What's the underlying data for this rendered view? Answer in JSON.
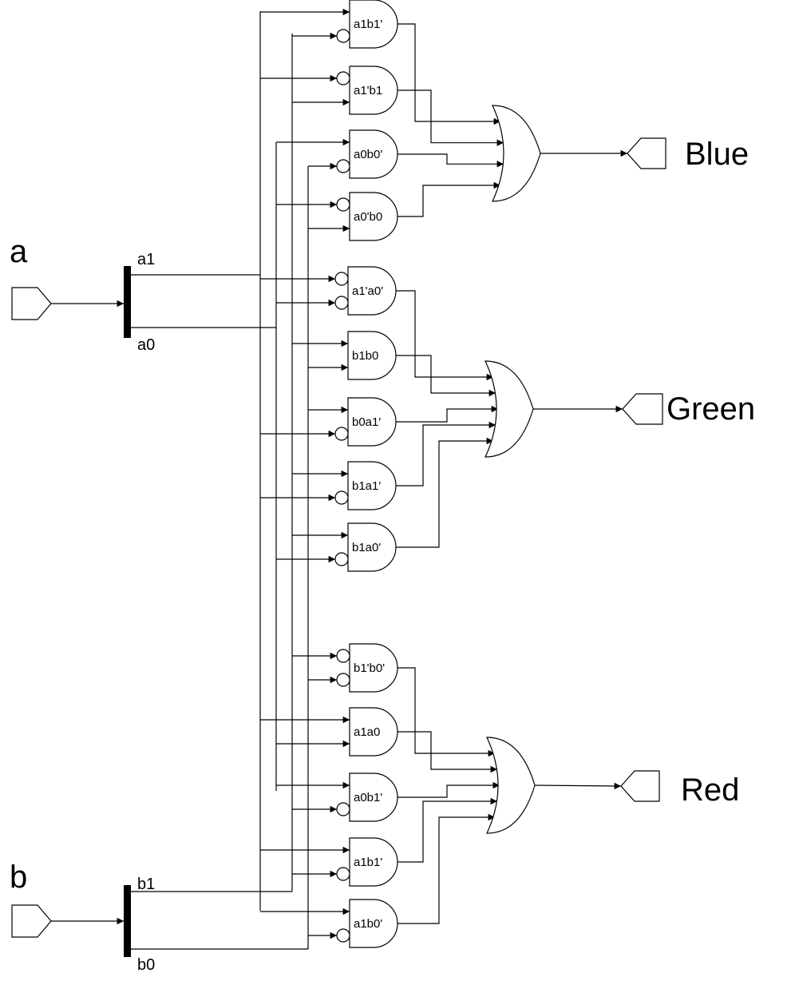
{
  "inputs": [
    {
      "id": "a",
      "label": "a",
      "bits": [
        "a1",
        "a0"
      ]
    },
    {
      "id": "b",
      "label": "b",
      "bits": [
        "b1",
        "b0"
      ]
    }
  ],
  "outputs": [
    {
      "id": "blue",
      "label": "Blue"
    },
    {
      "id": "green",
      "label": "Green"
    },
    {
      "id": "red",
      "label": "Red"
    }
  ],
  "gates": [
    {
      "label": "a1b1'",
      "output": "blue"
    },
    {
      "label": "a1'b1",
      "output": "blue"
    },
    {
      "label": "a0b0'",
      "output": "blue"
    },
    {
      "label": "a0'b0",
      "output": "blue"
    },
    {
      "label": "a1'a0'",
      "output": "green"
    },
    {
      "label": "b1b0",
      "output": "green"
    },
    {
      "label": "b0a1'",
      "output": "green"
    },
    {
      "label": "b1a1'",
      "output": "green"
    },
    {
      "label": "b1a0'",
      "output": "green"
    },
    {
      "label": "b1'b0'",
      "output": "red"
    },
    {
      "label": "a1a0",
      "output": "red"
    },
    {
      "label": "a0b1'",
      "output": "red"
    },
    {
      "label": "a1b1'",
      "output": "red"
    },
    {
      "label": "a1b0'",
      "output": "red"
    }
  ]
}
